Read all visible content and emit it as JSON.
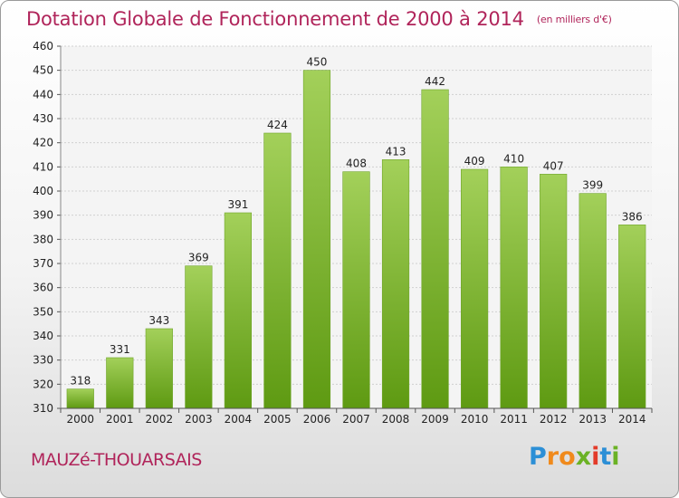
{
  "chart_data": {
    "type": "bar",
    "title": "Dotation Globale de Fonctionnement de 2000 à 2014",
    "unit_note": "(en milliers d'€)",
    "categories": [
      "2000",
      "2001",
      "2002",
      "2003",
      "2004",
      "2005",
      "2006",
      "2007",
      "2008",
      "2009",
      "2010",
      "2011",
      "2012",
      "2013",
      "2014"
    ],
    "values": [
      318,
      331,
      343,
      369,
      391,
      424,
      450,
      408,
      413,
      442,
      409,
      410,
      407,
      399,
      386
    ],
    "ylim": [
      310,
      460
    ],
    "yticks": [
      310,
      320,
      330,
      340,
      350,
      360,
      370,
      380,
      390,
      400,
      410,
      420,
      430,
      440,
      450,
      460
    ],
    "xlabel": "",
    "ylabel": "",
    "grid": true,
    "legend": "none",
    "colors": {
      "bar_light": "#a3d05a",
      "bar_dark": "#5e9a12",
      "title": "#b0245a"
    }
  },
  "footer": {
    "commune": "MAUZé-THOUARSAIS",
    "logo_letters": [
      "P",
      "r",
      "o",
      "x",
      "i",
      "t",
      "i"
    ],
    "logo_colors": [
      "#2c8fd6",
      "#f08a1c",
      "#f08a1c",
      "#6bb225",
      "#e33b2a",
      "#2c8fd6",
      "#6bb225"
    ]
  }
}
